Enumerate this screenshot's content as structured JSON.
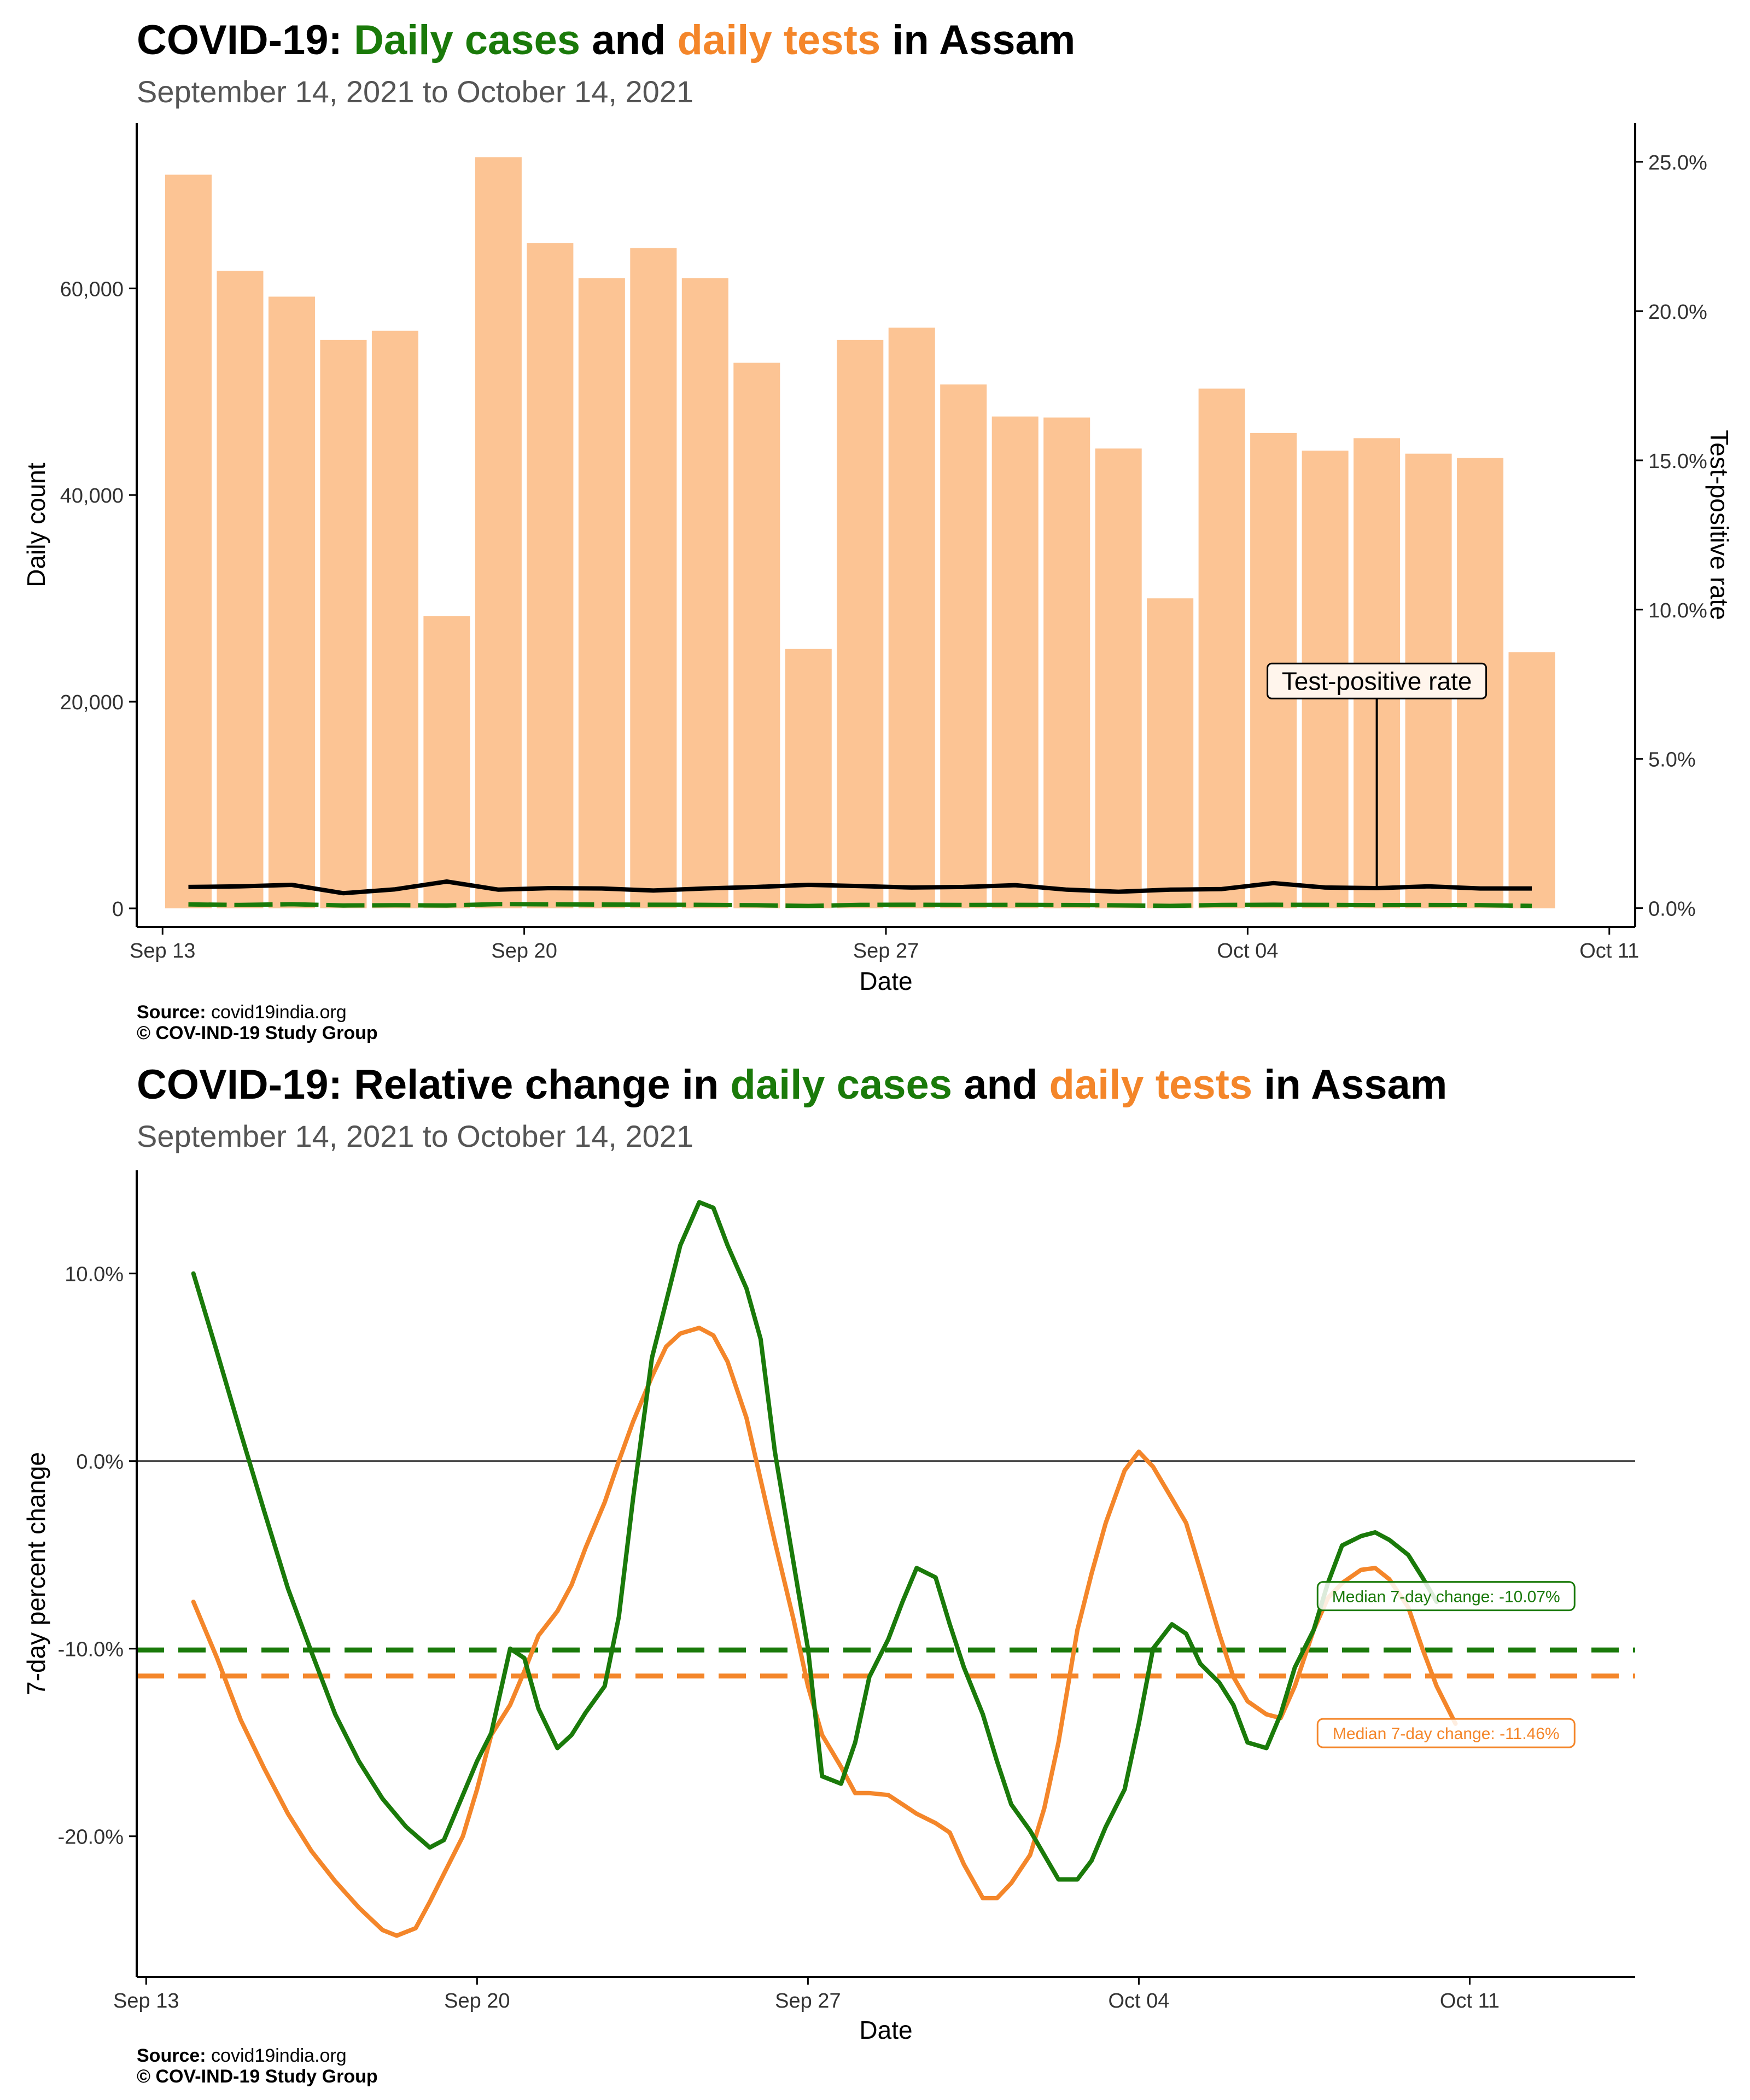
{
  "colors": {
    "cases": "#1a7a0a",
    "tests": "#f4862a",
    "tests_bar": "#fcc494",
    "rate_line": "#000000",
    "subtitle": "#555555"
  },
  "chart_data": [
    {
      "type": "bar",
      "title": {
        "prefix": "COVID-19: ",
        "cases": "Daily cases",
        "mid": " and ",
        "tests": "daily tests",
        "suffix": " in Assam"
      },
      "subtitle": "September 14, 2021 to October 14, 2021",
      "xlabel": "Date",
      "ylabel": "Daily count",
      "y2label": "Test-positive rate",
      "xlim": [
        -1,
        28
      ],
      "ylim": [
        -1800,
        76000
      ],
      "y2lim": [
        -0.63,
        26.3
      ],
      "xticks": [
        {
          "pos": -0.5,
          "label": "Sep 13"
        },
        {
          "pos": 6.5,
          "label": "Sep 20"
        },
        {
          "pos": 13.5,
          "label": "Sep 27"
        },
        {
          "pos": 20.5,
          "label": "Oct 04"
        },
        {
          "pos": 27.5,
          "label": "Oct 11"
        }
      ],
      "yticks": [
        {
          "value": 0,
          "label": "0"
        },
        {
          "value": 20000,
          "label": "20,000"
        },
        {
          "value": 40000,
          "label": "40,000"
        },
        {
          "value": 60000,
          "label": "60,000"
        }
      ],
      "y2ticks": [
        {
          "value": 0,
          "label": "0.0%"
        },
        {
          "value": 5,
          "label": "5.0%"
        },
        {
          "value": 10,
          "label": "10.0%"
        },
        {
          "value": 15,
          "label": "15.0%"
        },
        {
          "value": 20,
          "label": "20.0%"
        },
        {
          "value": 25,
          "label": "25.0%"
        }
      ],
      "series": [
        {
          "name": "daily tests",
          "type": "bar",
          "values": [
            71000,
            61700,
            59200,
            55000,
            55900,
            28300,
            72700,
            64400,
            61000,
            63900,
            61000,
            52800,
            25100,
            55000,
            56200,
            50700,
            47600,
            47500,
            44500,
            30000,
            50300,
            46000,
            44300,
            45500,
            44000,
            43600,
            24800
          ]
        },
        {
          "name": "daily cases",
          "type": "line",
          "values": [
            380,
            330,
            400,
            280,
            300,
            280,
            410,
            390,
            370,
            350,
            340,
            300,
            230,
            340,
            350,
            330,
            340,
            320,
            290,
            240,
            330,
            350,
            340,
            310,
            320,
            310,
            240
          ]
        },
        {
          "name": "Test-positive rate",
          "type": "line",
          "values": [
            0.71,
            0.73,
            0.78,
            0.5,
            0.63,
            0.89,
            0.62,
            0.67,
            0.66,
            0.59,
            0.66,
            0.71,
            0.78,
            0.74,
            0.69,
            0.71,
            0.77,
            0.62,
            0.55,
            0.62,
            0.64,
            0.84,
            0.69,
            0.67,
            0.73,
            0.66,
            0.66
          ]
        }
      ],
      "annotation": {
        "text": "Test-positive rate"
      },
      "source_label": "Source:",
      "source_value": "covid19india.org",
      "copyright": "© COV-IND-19 Study Group"
    },
    {
      "type": "line",
      "title": {
        "prefix": "COVID-19: Relative change in ",
        "cases": "daily cases",
        "mid": " and ",
        "tests": "daily tests",
        "suffix": " in Assam"
      },
      "subtitle": "September 14, 2021 to October 14, 2021",
      "xlabel": "Date",
      "ylabel": "7-day percent change",
      "xlim": [
        -0.2,
        31.5
      ],
      "ylim": [
        -27.5,
        15.5
      ],
      "xticks": [
        {
          "pos": 0,
          "label": "Sep 13"
        },
        {
          "pos": 7,
          "label": "Sep 20"
        },
        {
          "pos": 14,
          "label": "Sep 27"
        },
        {
          "pos": 21,
          "label": "Oct 04"
        },
        {
          "pos": 28,
          "label": "Oct 11"
        }
      ],
      "yticks": [
        {
          "value": -20,
          "label": "-20.0%"
        },
        {
          "value": -10,
          "label": "-10.0%"
        },
        {
          "value": 0,
          "label": "0.0%"
        },
        {
          "value": 10,
          "label": "10.0%"
        }
      ],
      "series": [
        {
          "name": "daily cases",
          "points": [
            [
              1.0,
              10.0
            ],
            [
              1.5,
              5.8
            ],
            [
              2.0,
              1.5
            ],
            [
              2.5,
              -2.7
            ],
            [
              3.0,
              -6.8
            ],
            [
              3.5,
              -10.2
            ],
            [
              4.0,
              -13.5
            ],
            [
              4.5,
              -16.0
            ],
            [
              5.0,
              -18.0
            ],
            [
              5.5,
              -19.5
            ],
            [
              6.0,
              -20.6
            ],
            [
              6.3,
              -20.2
            ],
            [
              6.7,
              -17.8
            ],
            [
              7.0,
              -16.0
            ],
            [
              7.3,
              -14.5
            ],
            [
              7.7,
              -10.0
            ],
            [
              8.0,
              -10.5
            ],
            [
              8.3,
              -13.2
            ],
            [
              8.7,
              -15.3
            ],
            [
              9.0,
              -14.6
            ],
            [
              9.3,
              -13.4
            ],
            [
              9.7,
              -12.0
            ],
            [
              10.0,
              -8.3
            ],
            [
              10.3,
              -2.0
            ],
            [
              10.7,
              5.5
            ],
            [
              11.0,
              8.5
            ],
            [
              11.3,
              11.5
            ],
            [
              11.7,
              13.8
            ],
            [
              12.0,
              13.5
            ],
            [
              12.3,
              11.5
            ],
            [
              12.7,
              9.2
            ],
            [
              13.0,
              6.5
            ],
            [
              13.3,
              0.5
            ],
            [
              13.7,
              -5.5
            ],
            [
              14.0,
              -10.0
            ],
            [
              14.3,
              -16.8
            ],
            [
              14.7,
              -17.2
            ],
            [
              15.0,
              -15.0
            ],
            [
              15.3,
              -11.5
            ],
            [
              15.7,
              -9.5
            ],
            [
              16.0,
              -7.5
            ],
            [
              16.3,
              -5.7
            ],
            [
              16.7,
              -6.2
            ],
            [
              17.0,
              -8.7
            ],
            [
              17.3,
              -11.0
            ],
            [
              17.7,
              -13.5
            ],
            [
              18.0,
              -16.0
            ],
            [
              18.3,
              -18.3
            ],
            [
              18.7,
              -19.7
            ],
            [
              19.0,
              -21.0
            ],
            [
              19.3,
              -22.3
            ],
            [
              19.7,
              -22.3
            ],
            [
              20.0,
              -21.3
            ],
            [
              20.3,
              -19.5
            ],
            [
              20.7,
              -17.5
            ],
            [
              21.0,
              -14.0
            ],
            [
              21.3,
              -10.0
            ],
            [
              21.7,
              -8.7
            ],
            [
              22.0,
              -9.2
            ],
            [
              22.3,
              -10.8
            ],
            [
              22.7,
              -11.8
            ],
            [
              23.0,
              -13.0
            ],
            [
              23.3,
              -15.0
            ],
            [
              23.7,
              -15.3
            ],
            [
              24.0,
              -13.5
            ],
            [
              24.3,
              -11.0
            ],
            [
              24.7,
              -9.0
            ],
            [
              25.0,
              -6.5
            ],
            [
              25.3,
              -4.5
            ],
            [
              25.7,
              -4.0
            ],
            [
              26.0,
              -3.8
            ],
            [
              26.3,
              -4.2
            ],
            [
              26.7,
              -5.0
            ],
            [
              27.0,
              -6.2
            ],
            [
              27.3,
              -7.5
            ]
          ]
        },
        {
          "name": "daily tests",
          "points": [
            [
              1.0,
              -7.5
            ],
            [
              1.5,
              -10.5
            ],
            [
              2.0,
              -13.8
            ],
            [
              2.5,
              -16.4
            ],
            [
              3.0,
              -18.8
            ],
            [
              3.5,
              -20.8
            ],
            [
              4.0,
              -22.4
            ],
            [
              4.5,
              -23.8
            ],
            [
              5.0,
              -25.0
            ],
            [
              5.3,
              -25.3
            ],
            [
              5.7,
              -24.9
            ],
            [
              6.0,
              -23.5
            ],
            [
              6.3,
              -22.0
            ],
            [
              6.7,
              -20.0
            ],
            [
              7.0,
              -17.5
            ],
            [
              7.3,
              -14.6
            ],
            [
              7.7,
              -13.0
            ],
            [
              8.0,
              -11.2
            ],
            [
              8.3,
              -9.3
            ],
            [
              8.7,
              -8.0
            ],
            [
              9.0,
              -6.6
            ],
            [
              9.3,
              -4.6
            ],
            [
              9.7,
              -2.2
            ],
            [
              10.0,
              0.0
            ],
            [
              10.3,
              2.1
            ],
            [
              10.7,
              4.5
            ],
            [
              11.0,
              6.1
            ],
            [
              11.3,
              6.8
            ],
            [
              11.7,
              7.1
            ],
            [
              12.0,
              6.7
            ],
            [
              12.3,
              5.3
            ],
            [
              12.7,
              2.3
            ],
            [
              13.0,
              -1.0
            ],
            [
              13.3,
              -4.3
            ],
            [
              13.7,
              -8.5
            ],
            [
              14.0,
              -12.0
            ],
            [
              14.3,
              -14.6
            ],
            [
              14.7,
              -16.3
            ],
            [
              15.0,
              -17.7
            ],
            [
              15.3,
              -17.7
            ],
            [
              15.7,
              -17.8
            ],
            [
              16.0,
              -18.3
            ],
            [
              16.3,
              -18.8
            ],
            [
              16.7,
              -19.3
            ],
            [
              17.0,
              -19.8
            ],
            [
              17.3,
              -21.5
            ],
            [
              17.7,
              -23.3
            ],
            [
              18.0,
              -23.3
            ],
            [
              18.3,
              -22.5
            ],
            [
              18.7,
              -21.0
            ],
            [
              19.0,
              -18.5
            ],
            [
              19.3,
              -15.0
            ],
            [
              19.7,
              -9.0
            ],
            [
              20.0,
              -6.0
            ],
            [
              20.3,
              -3.3
            ],
            [
              20.7,
              -0.5
            ],
            [
              21.0,
              0.5
            ],
            [
              21.3,
              -0.3
            ],
            [
              21.7,
              -2.0
            ],
            [
              22.0,
              -3.3
            ],
            [
              22.3,
              -5.8
            ],
            [
              22.7,
              -9.2
            ],
            [
              23.0,
              -11.5
            ],
            [
              23.3,
              -12.8
            ],
            [
              23.7,
              -13.5
            ],
            [
              24.0,
              -13.7
            ],
            [
              24.3,
              -12.0
            ],
            [
              24.7,
              -9.0
            ],
            [
              25.0,
              -7.3
            ],
            [
              25.3,
              -6.5
            ],
            [
              25.7,
              -5.8
            ],
            [
              26.0,
              -5.7
            ],
            [
              26.3,
              -6.3
            ],
            [
              26.7,
              -7.8
            ],
            [
              27.0,
              -10.0
            ],
            [
              27.3,
              -12.0
            ],
            [
              27.7,
              -14.0
            ]
          ]
        }
      ],
      "median_cases": {
        "value": -10.07,
        "label": "Median 7-day change: -10.07%"
      },
      "median_tests": {
        "value": -11.46,
        "label": "Median 7-day change: -11.46%"
      },
      "source_label": "Source:",
      "source_value": "covid19india.org",
      "copyright": "© COV-IND-19 Study Group"
    }
  ]
}
